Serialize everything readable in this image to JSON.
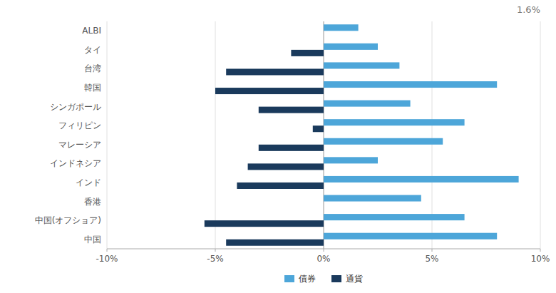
{
  "chart_data": {
    "type": "bar",
    "orientation": "horizontal",
    "categories": [
      "ALBI",
      "タイ",
      "台湾",
      "韓国",
      "シンガポール",
      "フィリピン",
      "マレーシア",
      "インドネシア",
      "インド",
      "香港",
      "中国(オフショア)",
      "中国"
    ],
    "series": [
      {
        "name": "債券",
        "color": "#4da6d9",
        "values": [
          1.6,
          2.5,
          3.5,
          8.0,
          4.0,
          6.5,
          5.5,
          2.5,
          9.0,
          4.5,
          6.5,
          8.0
        ]
      },
      {
        "name": "通貨",
        "color": "#1a3a5c",
        "values": [
          0.0,
          -1.5,
          -4.5,
          -5.0,
          -3.0,
          -0.5,
          -3.0,
          -3.5,
          -4.0,
          0.0,
          -5.5,
          -4.5
        ]
      }
    ],
    "xlim": [
      -10,
      10
    ],
    "xticks": [
      {
        "value": -10,
        "label": "-10%"
      },
      {
        "value": -5,
        "label": "-5%"
      },
      {
        "value": 0,
        "label": "0%"
      },
      {
        "value": 5,
        "label": "5%"
      },
      {
        "value": 10,
        "label": "10%"
      }
    ],
    "annotations": [
      "1.6%"
    ],
    "grid": true,
    "legend": "bottom"
  }
}
